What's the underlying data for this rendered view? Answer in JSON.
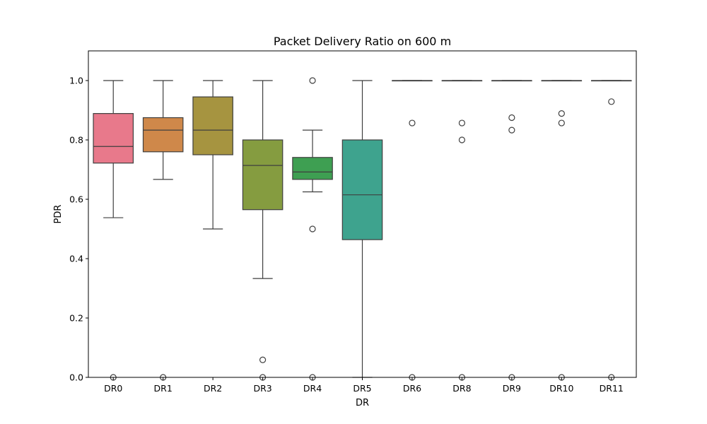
{
  "chart_data": {
    "type": "boxplot",
    "title": "Packet Delivery Ratio on 600 m",
    "xlabel": "DR",
    "ylabel": "PDR",
    "ylim": [
      0.0,
      1.1
    ],
    "yticks": [
      "0.0",
      "0.2",
      "0.4",
      "0.6",
      "0.8",
      "1.0"
    ],
    "ytick_values": [
      0.0,
      0.2,
      0.4,
      0.6,
      0.8,
      1.0
    ],
    "grid": false,
    "legend": "none",
    "categories": [
      "DR0",
      "DR1",
      "DR2",
      "DR3",
      "DR4",
      "DR5",
      "DR6",
      "DR8",
      "DR9",
      "DR10",
      "DR11"
    ],
    "colors": [
      "#e8798b",
      "#cf884a",
      "#a69440",
      "#859c40",
      "#3e9f52",
      "#3ea38e",
      "#3aa0a8",
      "#3f9bc0",
      "#7390d8",
      "#b286d6",
      "#dd7bc5"
    ],
    "boxes": [
      {
        "category": "DR0",
        "whislo": 0.538,
        "q1": 0.722,
        "med": 0.778,
        "q3": 0.889,
        "whishi": 1.0,
        "fliers": [
          0.0
        ]
      },
      {
        "category": "DR1",
        "whislo": 0.667,
        "q1": 0.76,
        "med": 0.833,
        "q3": 0.875,
        "whishi": 1.0,
        "fliers": [
          0.0
        ]
      },
      {
        "category": "DR2",
        "whislo": 0.5,
        "q1": 0.75,
        "med": 0.833,
        "q3": 0.945,
        "whishi": 1.0,
        "fliers": []
      },
      {
        "category": "DR3",
        "whislo": 0.333,
        "q1": 0.565,
        "med": 0.714,
        "q3": 0.8,
        "whishi": 1.0,
        "fliers": [
          0.059,
          0.0
        ]
      },
      {
        "category": "DR4",
        "whislo": 0.625,
        "q1": 0.667,
        "med": 0.692,
        "q3": 0.741,
        "whishi": 0.833,
        "fliers": [
          1.0,
          0.5,
          0.0
        ]
      },
      {
        "category": "DR5",
        "whislo": 0.0,
        "q1": 0.464,
        "med": 0.615,
        "q3": 0.8,
        "whishi": 1.0,
        "fliers": []
      },
      {
        "category": "DR6",
        "whislo": 1.0,
        "q1": 1.0,
        "med": 1.0,
        "q3": 1.0,
        "whishi": 1.0,
        "fliers": [
          0.857,
          0.0
        ]
      },
      {
        "category": "DR8",
        "whislo": 1.0,
        "q1": 1.0,
        "med": 1.0,
        "q3": 1.0,
        "whishi": 1.0,
        "fliers": [
          0.857,
          0.8,
          0.0
        ]
      },
      {
        "category": "DR9",
        "whislo": 1.0,
        "q1": 1.0,
        "med": 1.0,
        "q3": 1.0,
        "whishi": 1.0,
        "fliers": [
          0.875,
          0.833,
          0.0
        ]
      },
      {
        "category": "DR10",
        "whislo": 1.0,
        "q1": 1.0,
        "med": 1.0,
        "q3": 1.0,
        "whishi": 1.0,
        "fliers": [
          0.889,
          0.857,
          0.0
        ]
      },
      {
        "category": "DR11",
        "whislo": 1.0,
        "q1": 1.0,
        "med": 1.0,
        "q3": 1.0,
        "whishi": 1.0,
        "fliers": [
          0.929,
          0.0
        ]
      }
    ]
  }
}
